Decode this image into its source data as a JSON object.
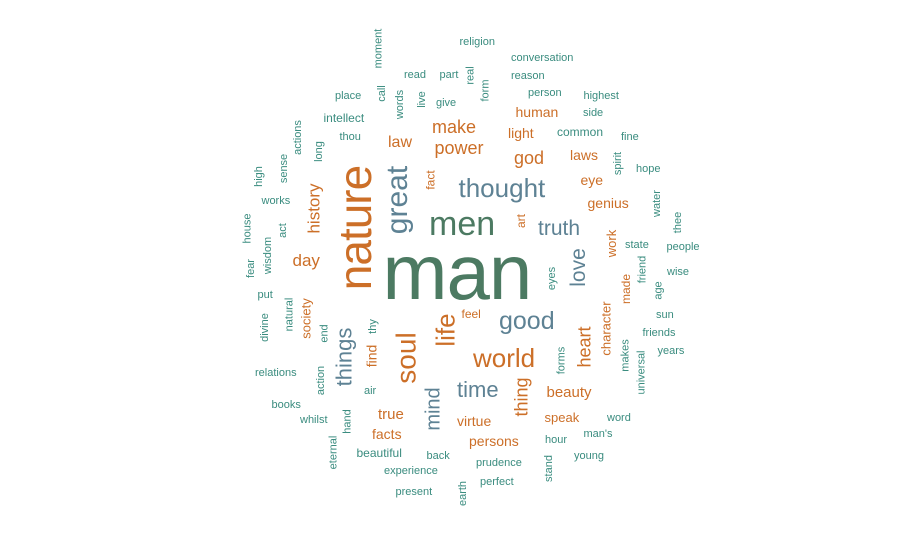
{
  "wordcloud": {
    "colors": {
      "orange": "#cc6f28",
      "slate": "#5e8294",
      "green": "#4c7a62",
      "teal": "#3a8c7f"
    },
    "words": [
      {
        "text": "man",
        "color": "green"
      },
      {
        "text": "nature",
        "color": "orange"
      },
      {
        "text": "men",
        "color": "green"
      },
      {
        "text": "thought",
        "color": "slate"
      },
      {
        "text": "great",
        "color": "slate"
      },
      {
        "text": "soul",
        "color": "orange"
      },
      {
        "text": "world",
        "color": "orange"
      },
      {
        "text": "good",
        "color": "slate"
      },
      {
        "text": "life",
        "color": "orange"
      },
      {
        "text": "truth",
        "color": "slate"
      },
      {
        "text": "things",
        "color": "slate"
      },
      {
        "text": "love",
        "color": "slate"
      },
      {
        "text": "time",
        "color": "slate"
      },
      {
        "text": "mind",
        "color": "slate"
      },
      {
        "text": "make",
        "color": "orange"
      },
      {
        "text": "power",
        "color": "orange"
      },
      {
        "text": "history",
        "color": "orange"
      },
      {
        "text": "heart",
        "color": "orange"
      },
      {
        "text": "god",
        "color": "orange"
      },
      {
        "text": "thing",
        "color": "orange"
      },
      {
        "text": "law",
        "color": "orange"
      },
      {
        "text": "day",
        "color": "orange"
      },
      {
        "text": "beauty",
        "color": "orange"
      },
      {
        "text": "true",
        "color": "orange"
      },
      {
        "text": "virtue",
        "color": "orange"
      },
      {
        "text": "persons",
        "color": "orange"
      },
      {
        "text": "facts",
        "color": "orange"
      },
      {
        "text": "genius",
        "color": "orange"
      },
      {
        "text": "laws",
        "color": "orange"
      },
      {
        "text": "eye",
        "color": "orange"
      },
      {
        "text": "light",
        "color": "orange"
      },
      {
        "text": "human",
        "color": "orange"
      },
      {
        "text": "find",
        "color": "orange"
      },
      {
        "text": "speak",
        "color": "orange"
      },
      {
        "text": "society",
        "color": "orange"
      },
      {
        "text": "character",
        "color": "orange"
      },
      {
        "text": "work",
        "color": "orange"
      },
      {
        "text": "art",
        "color": "orange"
      },
      {
        "text": "fact",
        "color": "orange"
      },
      {
        "text": "made",
        "color": "orange"
      },
      {
        "text": "feel",
        "color": "orange"
      },
      {
        "text": "common",
        "color": "teal"
      },
      {
        "text": "intellect",
        "color": "teal"
      },
      {
        "text": "beautiful",
        "color": "teal"
      },
      {
        "text": "prudence",
        "color": "teal"
      },
      {
        "text": "experience",
        "color": "teal"
      },
      {
        "text": "conversation",
        "color": "teal"
      },
      {
        "text": "religion",
        "color": "teal"
      },
      {
        "text": "reason",
        "color": "teal"
      },
      {
        "text": "person",
        "color": "teal"
      },
      {
        "text": "highest",
        "color": "teal"
      },
      {
        "text": "side",
        "color": "teal"
      },
      {
        "text": "fine",
        "color": "teal"
      },
      {
        "text": "hope",
        "color": "teal"
      },
      {
        "text": "spirit",
        "color": "teal"
      },
      {
        "text": "water",
        "color": "teal"
      },
      {
        "text": "thee",
        "color": "teal"
      },
      {
        "text": "state",
        "color": "teal"
      },
      {
        "text": "people",
        "color": "teal"
      },
      {
        "text": "wise",
        "color": "teal"
      },
      {
        "text": "friend",
        "color": "teal"
      },
      {
        "text": "age",
        "color": "teal"
      },
      {
        "text": "sun",
        "color": "teal"
      },
      {
        "text": "friends",
        "color": "teal"
      },
      {
        "text": "years",
        "color": "teal"
      },
      {
        "text": "makes",
        "color": "teal"
      },
      {
        "text": "universal",
        "color": "teal"
      },
      {
        "text": "word",
        "color": "teal"
      },
      {
        "text": "man's",
        "color": "teal"
      },
      {
        "text": "young",
        "color": "teal"
      },
      {
        "text": "hour",
        "color": "teal"
      },
      {
        "text": "stand",
        "color": "teal"
      },
      {
        "text": "perfect",
        "color": "teal"
      },
      {
        "text": "earth",
        "color": "teal"
      },
      {
        "text": "present",
        "color": "teal"
      },
      {
        "text": "back",
        "color": "teal"
      },
      {
        "text": "eternal",
        "color": "teal"
      },
      {
        "text": "hand",
        "color": "teal"
      },
      {
        "text": "whilst",
        "color": "teal"
      },
      {
        "text": "books",
        "color": "teal"
      },
      {
        "text": "air",
        "color": "teal"
      },
      {
        "text": "relations",
        "color": "teal"
      },
      {
        "text": "action",
        "color": "teal"
      },
      {
        "text": "end",
        "color": "teal"
      },
      {
        "text": "thy",
        "color": "teal"
      },
      {
        "text": "divine",
        "color": "teal"
      },
      {
        "text": "natural",
        "color": "teal"
      },
      {
        "text": "put",
        "color": "teal"
      },
      {
        "text": "wisdom",
        "color": "teal"
      },
      {
        "text": "fear",
        "color": "teal"
      },
      {
        "text": "house",
        "color": "teal"
      },
      {
        "text": "act",
        "color": "teal"
      },
      {
        "text": "works",
        "color": "teal"
      },
      {
        "text": "high",
        "color": "teal"
      },
      {
        "text": "sense",
        "color": "teal"
      },
      {
        "text": "actions",
        "color": "teal"
      },
      {
        "text": "long",
        "color": "teal"
      },
      {
        "text": "thou",
        "color": "teal"
      },
      {
        "text": "place",
        "color": "teal"
      },
      {
        "text": "call",
        "color": "teal"
      },
      {
        "text": "moment",
        "color": "teal"
      },
      {
        "text": "words",
        "color": "teal"
      },
      {
        "text": "read",
        "color": "teal"
      },
      {
        "text": "live",
        "color": "teal"
      },
      {
        "text": "part",
        "color": "teal"
      },
      {
        "text": "give",
        "color": "teal"
      },
      {
        "text": "real",
        "color": "teal"
      },
      {
        "text": "form",
        "color": "teal"
      },
      {
        "text": "eyes",
        "color": "teal"
      },
      {
        "text": "forms",
        "color": "teal"
      }
    ]
  }
}
